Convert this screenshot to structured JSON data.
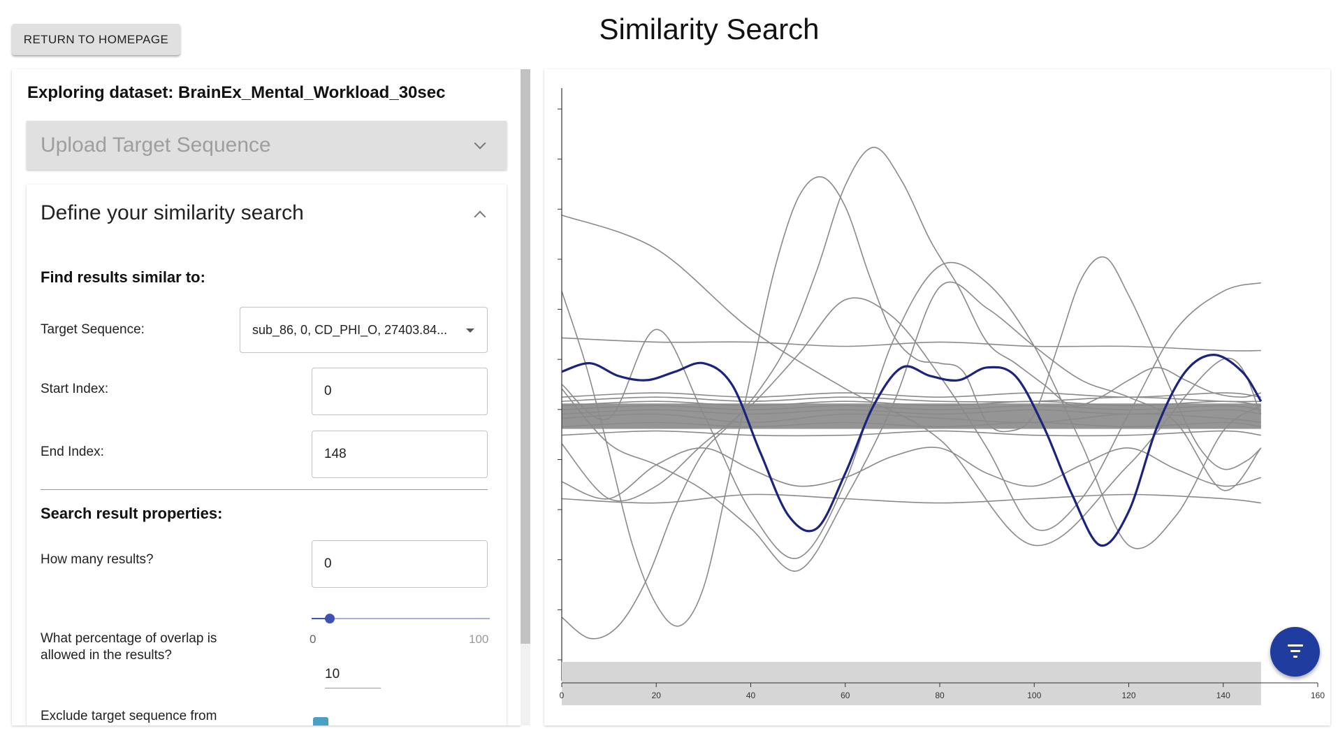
{
  "header": {
    "return_button": "RETURN TO HOMEPAGE",
    "title": "Similarity Search"
  },
  "left_panel": {
    "dataset_label": "Exploring dataset: BrainEx_Mental_Workload_30sec",
    "upload_accordion": {
      "title": "Upload Target Sequence",
      "expanded": false
    },
    "define_accordion": {
      "title": "Define your similarity search",
      "expanded": true,
      "find_similar_heading": "Find results similar to:",
      "target_sequence": {
        "label": "Target Sequence:",
        "value": "sub_86, 0, CD_PHI_O, 27403.84..."
      },
      "start_index": {
        "label": "Start Index:",
        "value": "0"
      },
      "end_index": {
        "label": "End Index:",
        "value": "148"
      },
      "result_properties_heading": "Search result properties:",
      "how_many": {
        "label": "How many results?",
        "value": "0"
      },
      "overlap": {
        "label": "What percentage of overlap is allowed in the results?",
        "min": "0",
        "max": "100",
        "value": "10",
        "fraction": 0.1
      },
      "exclude": {
        "label": "Exclude target sequence from results",
        "checked": true
      }
    }
  },
  "chart_data": {
    "type": "line",
    "title": "",
    "xlabel": "",
    "ylabel": "",
    "xlim": [
      0,
      160
    ],
    "ylim": [
      0,
      14
    ],
    "x_ticks": [
      "0",
      "20",
      "40",
      "60",
      "80",
      "100",
      "120",
      "140",
      "160"
    ],
    "y_tick_count": 12,
    "grid": false,
    "legend": "none",
    "brush_range": [
      0,
      148
    ],
    "target_series": {
      "color": "#1a237e",
      "x": [
        0,
        6,
        12,
        18,
        24,
        30,
        36,
        42,
        48,
        54,
        60,
        66,
        72,
        78,
        84,
        90,
        96,
        102,
        108,
        114,
        120,
        126,
        132,
        138,
        144,
        148
      ],
      "y": [
        7.3,
        7.5,
        7.2,
        7.1,
        7.3,
        7.5,
        7.0,
        5.4,
        3.9,
        3.6,
        4.9,
        6.5,
        7.4,
        7.2,
        7.1,
        7.4,
        7.2,
        6.0,
        4.4,
        3.2,
        4.0,
        6.0,
        7.3,
        7.7,
        7.3,
        6.6
      ]
    },
    "background_series_color": "#8a8a8a",
    "background_series": [
      {
        "x": [
          0,
          20,
          40,
          60,
          80,
          100,
          120,
          140,
          148
        ],
        "y": [
          11.0,
          10.2,
          8.3,
          6.9,
          5.7,
          3.2,
          5.1,
          7.6,
          6.3
        ]
      },
      {
        "x": [
          0,
          6,
          12,
          18,
          24,
          30,
          36,
          42,
          48,
          54,
          60,
          66,
          72,
          78,
          84,
          90,
          96,
          102,
          108,
          114,
          120,
          126,
          132,
          138,
          144,
          148
        ],
        "y": [
          1.5,
          1.0,
          1.3,
          2.4,
          4.1,
          5.4,
          6.1,
          6.9,
          8.0,
          9.7,
          11.7,
          12.6,
          11.8,
          10.4,
          9.3,
          8.0,
          7.5,
          7.0,
          6.5,
          6.7,
          7.1,
          7.4,
          7.1,
          6.8,
          6.7,
          6.8
        ]
      },
      {
        "x": [
          0,
          5,
          10,
          15,
          20,
          25,
          30,
          35,
          40,
          45,
          50,
          55,
          60,
          65,
          70,
          75,
          80,
          85,
          90,
          95,
          100,
          105,
          110,
          115,
          120,
          125,
          130,
          135,
          140,
          145,
          148
        ],
        "y": [
          9.2,
          7.5,
          5.4,
          3.2,
          1.8,
          1.3,
          2.2,
          4.6,
          7.2,
          9.7,
          11.4,
          11.9,
          11.2,
          9.6,
          8.2,
          7.6,
          7.5,
          7.3,
          6.1,
          5.9,
          6.3,
          7.9,
          9.5,
          10.0,
          9.1,
          7.9,
          6.6,
          5.5,
          5.0,
          5.2,
          5.5
        ]
      },
      {
        "x": [
          0,
          10,
          20,
          30,
          40,
          50,
          60,
          70,
          80,
          90,
          100,
          110,
          120,
          130,
          140,
          148
        ],
        "y": [
          6.9,
          5.6,
          5.1,
          4.5,
          3.6,
          2.6,
          4.3,
          6.5,
          9.3,
          8.8,
          7.9,
          7.1,
          6.7,
          6.1,
          4.5,
          5.5
        ]
      },
      {
        "x": [
          0,
          10,
          20,
          30,
          40,
          50,
          60,
          70,
          80,
          90,
          100,
          110,
          120,
          130,
          140,
          148
        ],
        "y": [
          7.0,
          6.2,
          8.3,
          6.3,
          4.0,
          2.9,
          4.7,
          8.0,
          9.8,
          9.4,
          7.9,
          5.6,
          3.2,
          3.9,
          5.9,
          6.5
        ]
      },
      {
        "x": [
          0,
          10,
          20,
          30,
          40,
          50,
          60,
          70,
          80,
          90,
          100,
          110,
          120,
          130,
          140,
          148
        ],
        "y": [
          5.6,
          4.3,
          4.6,
          5.6,
          6.5,
          7.7,
          9.0,
          8.6,
          7.2,
          5.5,
          3.6,
          4.3,
          6.3,
          8.3,
          9.2,
          9.4
        ]
      },
      {
        "x": [
          0,
          10,
          20,
          30,
          40,
          50,
          60,
          70,
          80,
          90,
          100,
          110,
          120,
          130,
          140,
          148
        ],
        "y": [
          4.7,
          4.3,
          5.1,
          5.5,
          5.0,
          4.6,
          4.8,
          5.3,
          5.5,
          4.9,
          4.6,
          5.1,
          5.5,
          5.0,
          4.6,
          4.8
        ]
      },
      {
        "x": [
          0,
          20,
          40,
          60,
          80,
          100,
          120,
          140,
          148
        ],
        "y": [
          8.1,
          8.0,
          8.0,
          7.9,
          8.0,
          7.9,
          7.9,
          7.8,
          7.8
        ]
      },
      {
        "x": [
          0,
          20,
          40,
          60,
          80,
          100,
          120,
          140,
          148
        ],
        "y": [
          6.2,
          6.3,
          6.1,
          6.3,
          6.2,
          6.1,
          6.3,
          6.2,
          6.1
        ]
      },
      {
        "x": [
          0,
          20,
          40,
          60,
          80,
          100,
          120,
          140,
          148
        ],
        "y": [
          6.6,
          6.7,
          6.6,
          6.7,
          6.6,
          6.6,
          6.7,
          6.6,
          6.6
        ]
      },
      {
        "x": [
          0,
          20,
          40,
          60,
          80,
          100,
          120,
          140,
          148
        ],
        "y": [
          5.8,
          5.9,
          5.8,
          5.8,
          5.9,
          5.8,
          5.8,
          5.9,
          5.8
        ]
      },
      {
        "x": [
          0,
          20,
          40,
          60,
          80,
          100,
          120,
          140,
          148
        ],
        "y": [
          4.3,
          4.2,
          4.4,
          4.3,
          4.2,
          4.3,
          4.4,
          4.3,
          4.2
        ]
      },
      {
        "x": [
          0,
          20,
          40,
          60,
          80,
          100,
          120,
          140,
          148
        ],
        "y": [
          6.4,
          6.5,
          6.4,
          6.5,
          6.4,
          6.5,
          6.4,
          6.5,
          6.4
        ]
      },
      {
        "x": [
          0,
          20,
          40,
          60,
          80,
          100,
          120,
          140,
          148
        ],
        "y": [
          6.5,
          6.6,
          6.5,
          6.6,
          6.5,
          6.6,
          6.5,
          6.6,
          6.5
        ]
      },
      {
        "x": [
          0,
          20,
          40,
          60,
          80,
          100,
          120,
          140,
          148
        ],
        "y": [
          6.3,
          6.4,
          6.3,
          6.4,
          6.3,
          6.4,
          6.3,
          6.4,
          6.3
        ]
      },
      {
        "x": [
          0,
          20,
          40,
          60,
          80,
          100,
          120,
          140,
          148
        ],
        "y": [
          6.7,
          6.8,
          6.7,
          6.8,
          6.7,
          6.8,
          6.7,
          6.8,
          6.7
        ]
      },
      {
        "x": [
          0,
          20,
          40,
          60,
          80,
          100,
          120,
          140,
          148
        ],
        "y": [
          6.0,
          6.1,
          6.0,
          6.1,
          6.0,
          6.1,
          6.0,
          6.1,
          6.0
        ]
      }
    ]
  },
  "fab": {
    "icon": "filter-icon",
    "color": "#1f3c9e"
  }
}
